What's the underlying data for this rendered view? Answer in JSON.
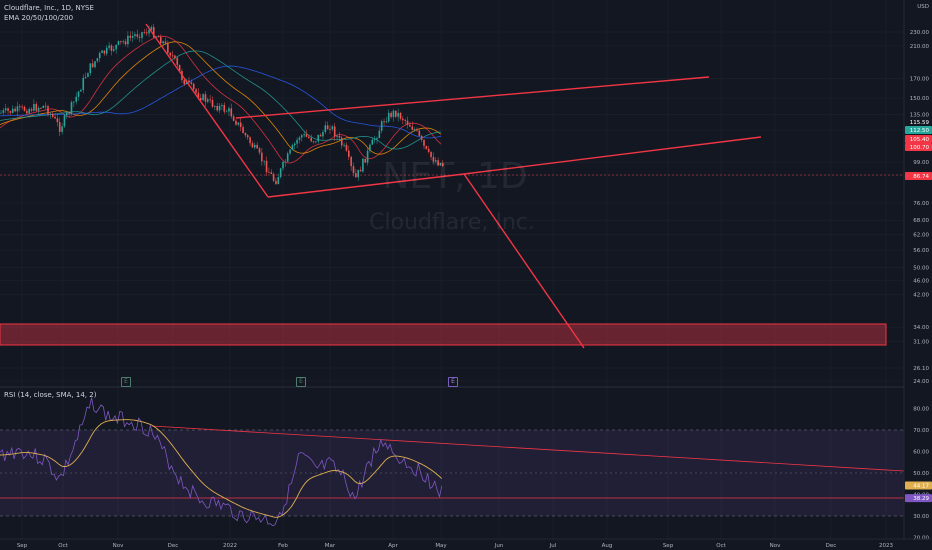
{
  "header": {
    "symbol_line": "Cloudflare, Inc., 1D, NYSE",
    "ema_line": "EMA 20/50/100/200"
  },
  "watermark": {
    "ticker": "NET, 1D",
    "name": "Cloudflare, Inc."
  },
  "rsi": {
    "label": "RSI (14, close, SMA, 14, 2)"
  },
  "events": [
    {
      "label": "E",
      "kind": "earnings"
    },
    {
      "label": "E",
      "kind": "earnings"
    },
    {
      "label": "E",
      "kind": "earnings-upcoming"
    }
  ],
  "colors": {
    "background": "#131722",
    "up": "#26a69a",
    "down": "#ef5350",
    "drawing": "#f23645",
    "rsi_line": "#7e57c2",
    "rsi_sma": "#e0b050"
  },
  "chart_data": {
    "type": "candlestick",
    "price_axis": {
      "unit": "USD",
      "scale": "log",
      "ticks": [
        "230.00",
        "210.00",
        "170.00",
        "150.00",
        "135.00",
        "122.00",
        "99.00",
        "91.00",
        "76.00",
        "68.00",
        "62.00",
        "56.00",
        "50.00",
        "46.00",
        "42.00",
        "34.00",
        "31.00",
        "26.10",
        "24.00"
      ]
    },
    "time_axis": [
      "Sep",
      "Oct",
      "Nov",
      "Dec",
      "2022",
      "Feb",
      "Mar",
      "Apr",
      "May",
      "Jun",
      "Jul",
      "Aug",
      "Sep",
      "Oct",
      "Nov",
      "Dec",
      "2023"
    ],
    "price_labels": [
      {
        "value": "115.59",
        "color": "#131722"
      },
      {
        "value": "112.50",
        "color": "#26a69a"
      },
      {
        "value": "105.40",
        "color": "#f23645"
      },
      {
        "value": "100.70",
        "color": "#f23645"
      },
      {
        "value": "86.74",
        "color": "#f23645"
      }
    ],
    "rsi_axis": {
      "ticks": [
        "80.00",
        "70.00",
        "60.00",
        "50.00",
        "40.00",
        "30.00",
        "20.00"
      ],
      "labels": [
        "44.17",
        "38.29"
      ],
      "upper_band": 70,
      "lower_band": 30
    }
  }
}
